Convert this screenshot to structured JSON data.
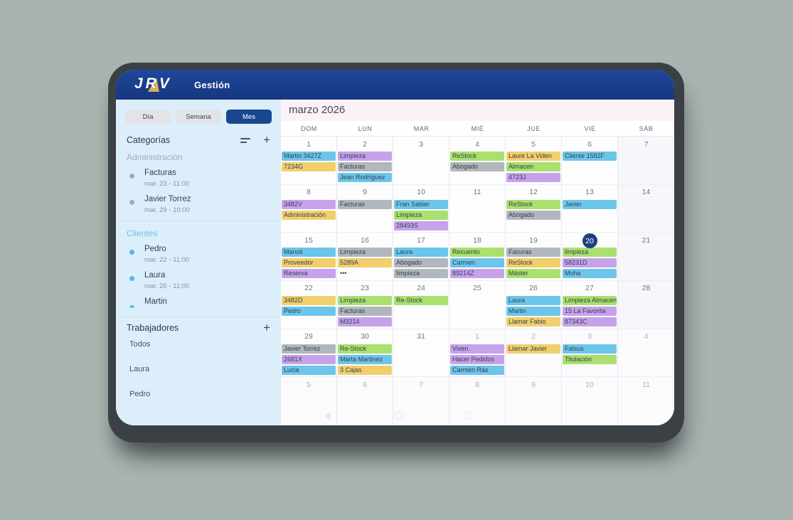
{
  "app": {
    "logo_text": "JRV",
    "title": "Gestión"
  },
  "sidebar": {
    "tabs": [
      {
        "label": "Día",
        "active": false
      },
      {
        "label": "Semana",
        "active": false
      },
      {
        "label": "Mes",
        "active": true
      }
    ],
    "categories_label": "Categorías",
    "sections": [
      {
        "title": "Administración",
        "title_color": "#a3abb4",
        "dot_color": "#a3abb4",
        "items": [
          {
            "name": "Facturas",
            "time": "mar. 23 - 11:00"
          },
          {
            "name": "Javier Torrez",
            "time": "mar. 29 - 10:00"
          }
        ]
      },
      {
        "title": "Clientes",
        "title_color": "#6fbfe9",
        "dot_color": "#55b6e8",
        "items": [
          {
            "name": "Pedro",
            "time": "mar. 22 - 11:00"
          },
          {
            "name": "Laura",
            "time": "mar. 26 - 11:00"
          },
          {
            "name": "Martin",
            "time": "",
            "dot_partial": true
          }
        ]
      }
    ],
    "workers_label": "Trabajadores",
    "workers": [
      "Todos",
      "Laura",
      "Pedro"
    ]
  },
  "calendar": {
    "title": "marzo 2026",
    "weekdays": [
      "DOM",
      "LUN",
      "MAR",
      "MIÉ",
      "JUE",
      "VIE",
      "SÁB"
    ],
    "event_colors": {
      "blue": "#6cc5ea",
      "yellow": "#f2cf6d",
      "purple": "#c6a2eb",
      "green": "#a9e06e",
      "gray": "#b2b7bd",
      "plain": "transparent"
    },
    "today_color": "#1d3f7d",
    "weeks": [
      [
        {
          "d": 1,
          "out": false,
          "ev": [
            [
              "Martin 3427Z",
              "blue"
            ],
            [
              "7234G",
              "yellow"
            ]
          ]
        },
        {
          "d": 2,
          "out": false,
          "ev": [
            [
              "Limpieza",
              "purple"
            ],
            [
              "Facturas",
              "gray"
            ],
            [
              "Jean Rodríguez",
              "blue"
            ]
          ]
        },
        {
          "d": 3,
          "out": false,
          "ev": []
        },
        {
          "d": 4,
          "out": false,
          "ev": [
            [
              "ReStock",
              "green"
            ],
            [
              "Abogado",
              "gray"
            ]
          ]
        },
        {
          "d": 5,
          "out": false,
          "ev": [
            [
              "Laure La Viden",
              "yellow"
            ],
            [
              "Almacen",
              "green"
            ],
            [
              "4723J",
              "purple"
            ]
          ]
        },
        {
          "d": 6,
          "out": false,
          "ev": [
            [
              "Cliente 1582F",
              "blue"
            ]
          ]
        },
        {
          "d": 7,
          "out": false,
          "ev": []
        }
      ],
      [
        {
          "d": 8,
          "out": false,
          "ev": [
            [
              "3482V",
              "purple"
            ],
            [
              "Administración",
              "yellow"
            ]
          ]
        },
        {
          "d": 9,
          "out": false,
          "ev": [
            [
              "Facturas",
              "gray"
            ]
          ]
        },
        {
          "d": 10,
          "out": false,
          "ev": [
            [
              "Fran Sabier",
              "blue"
            ],
            [
              "Limpieza",
              "green"
            ],
            [
              "28493S",
              "purple"
            ]
          ]
        },
        {
          "d": 11,
          "out": false,
          "ev": []
        },
        {
          "d": 12,
          "out": false,
          "ev": [
            [
              "ReStock",
              "green"
            ],
            [
              "Abogado",
              "gray"
            ]
          ]
        },
        {
          "d": 13,
          "out": false,
          "ev": [
            [
              "Javier",
              "blue"
            ]
          ]
        },
        {
          "d": 14,
          "out": false,
          "ev": []
        }
      ],
      [
        {
          "d": 15,
          "out": false,
          "ev": [
            [
              "Manoli",
              "blue"
            ],
            [
              "Proveedor",
              "yellow"
            ],
            [
              "Reserva",
              "purple"
            ]
          ]
        },
        {
          "d": 16,
          "out": false,
          "ev": [
            [
              "Limpieza",
              "gray"
            ],
            [
              "5289A",
              "yellow"
            ],
            [
              "•••",
              "plain"
            ]
          ]
        },
        {
          "d": 17,
          "out": false,
          "ev": [
            [
              "Laura",
              "blue"
            ],
            [
              "Abogado",
              "gray"
            ],
            [
              "limpieza",
              "gray"
            ]
          ]
        },
        {
          "d": 18,
          "out": false,
          "ev": [
            [
              "Recuento",
              "green"
            ],
            [
              "Carmen",
              "blue"
            ],
            [
              "89214Z",
              "purple"
            ]
          ]
        },
        {
          "d": 19,
          "out": false,
          "ev": [
            [
              "Facuras",
              "gray"
            ],
            [
              "ReStock",
              "yellow"
            ],
            [
              "Máster",
              "green"
            ]
          ]
        },
        {
          "d": 20,
          "out": false,
          "today": true,
          "ev": [
            [
              "limpieza",
              "green"
            ],
            [
              "58231D",
              "purple"
            ],
            [
              "Moha",
              "blue"
            ]
          ]
        },
        {
          "d": 21,
          "out": false,
          "ev": []
        }
      ],
      [
        {
          "d": 22,
          "out": false,
          "ev": [
            [
              "3482D",
              "yellow"
            ],
            [
              "Pedro",
              "blue"
            ]
          ]
        },
        {
          "d": 23,
          "out": false,
          "ev": [
            [
              "Limpieza",
              "green"
            ],
            [
              "Facturas",
              "gray"
            ],
            [
              "M3214",
              "purple"
            ]
          ]
        },
        {
          "d": 24,
          "out": false,
          "ev": [
            [
              "Re-Stock",
              "green"
            ]
          ]
        },
        {
          "d": 25,
          "out": false,
          "ev": []
        },
        {
          "d": 26,
          "out": false,
          "ev": [
            [
              "Laura",
              "blue"
            ],
            [
              "Martin",
              "blue"
            ],
            [
              "Llamar Fabio",
              "yellow"
            ]
          ]
        },
        {
          "d": 27,
          "out": false,
          "ev": [
            [
              "Limpieza Almacen",
              "green"
            ],
            [
              "15 La Favorita",
              "purple"
            ],
            [
              "87343C",
              "purple"
            ]
          ]
        },
        {
          "d": 28,
          "out": false,
          "ev": []
        }
      ],
      [
        {
          "d": 29,
          "out": false,
          "ev": [
            [
              "Javier Torrez",
              "gray"
            ],
            [
              "2681X",
              "purple"
            ],
            [
              "Lucia",
              "blue"
            ]
          ]
        },
        {
          "d": 30,
          "out": false,
          "ev": [
            [
              "Re-Stock",
              "green"
            ],
            [
              "Marta Martinez",
              "blue"
            ],
            [
              "3 Cajas",
              "yellow"
            ]
          ]
        },
        {
          "d": 31,
          "out": false,
          "ev": []
        },
        {
          "d": 1,
          "out": true,
          "ev": [
            [
              "Viven",
              "purple"
            ],
            [
              "Hacer Pedidos",
              "purple"
            ],
            [
              "Carmen Ras",
              "blue"
            ]
          ]
        },
        {
          "d": 2,
          "out": true,
          "ev": [
            [
              "Llamar Javier",
              "yellow"
            ]
          ]
        },
        {
          "d": 3,
          "out": true,
          "ev": [
            [
              "Falsus",
              "blue"
            ],
            [
              "Titulación",
              "green"
            ]
          ]
        },
        {
          "d": 4,
          "out": true,
          "ev": []
        }
      ],
      [
        {
          "d": 5,
          "out": true,
          "ev": []
        },
        {
          "d": 6,
          "out": true,
          "ev": []
        },
        {
          "d": 7,
          "out": true,
          "ev": []
        },
        {
          "d": 8,
          "out": true,
          "ev": []
        },
        {
          "d": 9,
          "out": true,
          "ev": []
        },
        {
          "d": 10,
          "out": true,
          "ev": []
        },
        {
          "d": 11,
          "out": true,
          "ev": []
        }
      ]
    ]
  },
  "tablet_nav": {
    "icons": [
      "back",
      "home",
      "recents"
    ]
  }
}
